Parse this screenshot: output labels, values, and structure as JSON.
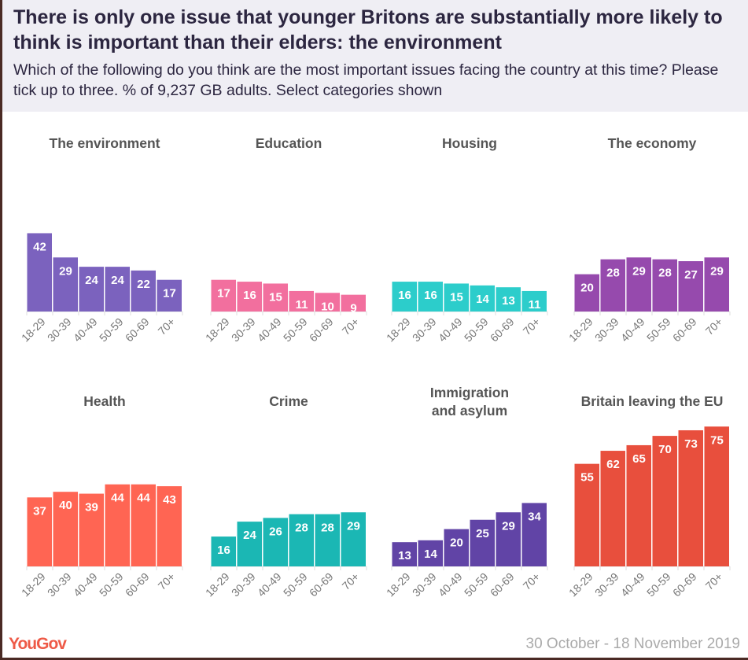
{
  "title": "There is only one issue that younger Britons are substantially more likely to think is important than their elders: the environment",
  "subtitle": "Which of the following do you think are the most important issues facing the country at this time? Please tick up to three. % of 9,237 GB adults. Select categories shown",
  "footer": {
    "logo": "YouGov",
    "date": "30 October - 18 November 2019"
  },
  "chart_data": [
    {
      "type": "bar",
      "title": "The environment",
      "categories": [
        "18-29",
        "30-39",
        "40-49",
        "50-59",
        "60-69",
        "70+"
      ],
      "values": [
        42,
        29,
        24,
        24,
        22,
        17
      ],
      "color": "#7b62be"
    },
    {
      "type": "bar",
      "title": "Education",
      "categories": [
        "18-29",
        "30-39",
        "40-49",
        "50-59",
        "60-69",
        "70+"
      ],
      "values": [
        17,
        16,
        15,
        11,
        10,
        9
      ],
      "color": "#f26f9e"
    },
    {
      "type": "bar",
      "title": "Housing",
      "categories": [
        "18-29",
        "30-39",
        "40-49",
        "50-59",
        "60-69",
        "70+"
      ],
      "values": [
        16,
        16,
        15,
        14,
        13,
        11
      ],
      "color": "#2ccdcb"
    },
    {
      "type": "bar",
      "title": "The economy",
      "categories": [
        "18-29",
        "30-39",
        "40-49",
        "50-59",
        "60-69",
        "70+"
      ],
      "values": [
        20,
        28,
        29,
        28,
        27,
        29
      ],
      "color": "#964aad"
    },
    {
      "type": "bar",
      "title": "Health",
      "categories": [
        "18-29",
        "30-39",
        "40-49",
        "50-59",
        "60-69",
        "70+"
      ],
      "values": [
        37,
        40,
        39,
        44,
        44,
        43
      ],
      "color": "#ff6553"
    },
    {
      "type": "bar",
      "title": "Crime",
      "categories": [
        "18-29",
        "30-39",
        "40-49",
        "50-59",
        "60-69",
        "70+"
      ],
      "values": [
        16,
        24,
        26,
        28,
        28,
        29
      ],
      "color": "#1bb7b4"
    },
    {
      "type": "bar",
      "title": "Immigration and asylum",
      "categories": [
        "18-29",
        "30-39",
        "40-49",
        "50-59",
        "60-69",
        "70+"
      ],
      "values": [
        13,
        14,
        20,
        25,
        29,
        34
      ],
      "color": "#6144a6"
    },
    {
      "type": "bar",
      "title": "Britain leaving the EU",
      "categories": [
        "18-29",
        "30-39",
        "40-49",
        "50-59",
        "60-69",
        "70+"
      ],
      "values": [
        55,
        62,
        65,
        70,
        73,
        75
      ],
      "color": "#e84f3d"
    }
  ]
}
